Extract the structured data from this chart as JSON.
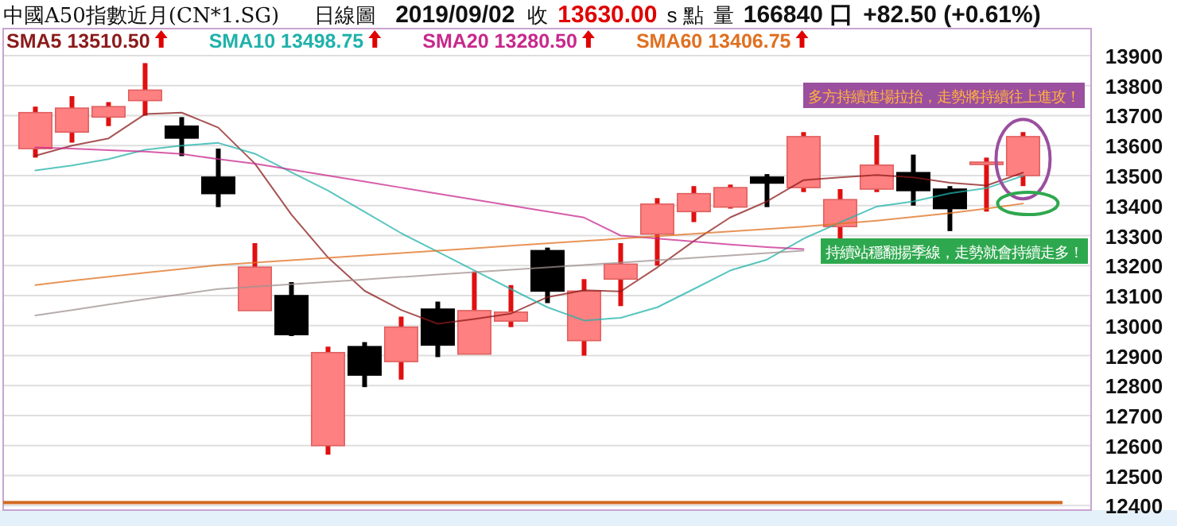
{
  "chart_data": {
    "type": "candlestick",
    "title": "中國A50指數近月(CN*1.SG)",
    "subtitle": "日線圖",
    "annotations": [
      "2019/09/02",
      "收",
      "13630.00",
      "s 點",
      "量",
      "166840 口",
      "+82.50 (+0.61%)",
      "多方持續進場拉抬，走勢將持續往上進攻！",
      "持續站穩翻揚季線，走勢就會持續走多！"
    ],
    "categories": [
      null,
      null,
      null,
      null,
      null,
      null,
      null,
      null,
      null,
      null,
      null,
      null,
      null,
      null,
      null,
      null,
      null,
      null,
      null,
      null,
      null,
      null,
      null,
      null,
      null,
      null,
      null,
      null
    ],
    "ohlc": [
      [
        13590,
        13730,
        13560,
        13710
      ],
      [
        13645,
        13765,
        13610,
        13725
      ],
      [
        13695,
        13745,
        13665,
        13730
      ],
      [
        13750,
        13875,
        13700,
        13785
      ],
      [
        13665,
        13695,
        13565,
        13625
      ],
      [
        13495,
        13590,
        13395,
        13440
      ],
      [
        13050,
        13275,
        13050,
        13195
      ],
      [
        13100,
        13145,
        12965,
        12970
      ],
      [
        12600,
        12930,
        12570,
        12910
      ],
      [
        12930,
        12945,
        12795,
        12835
      ],
      [
        12880,
        13030,
        12820,
        12995
      ],
      [
        13055,
        13080,
        12895,
        12935
      ],
      [
        12905,
        13180,
        12905,
        13050
      ],
      [
        13015,
        13135,
        12995,
        13045
      ],
      [
        13250,
        13260,
        13075,
        13115
      ],
      [
        12950,
        13155,
        12900,
        13115
      ],
      [
        13155,
        13275,
        13065,
        13205
      ],
      [
        13305,
        13425,
        13200,
        13405
      ],
      [
        13380,
        13465,
        13345,
        13440
      ],
      [
        13395,
        13470,
        13390,
        13460
      ],
      [
        13495,
        13505,
        13395,
        13475
      ],
      [
        13460,
        13645,
        13445,
        13630
      ],
      [
        13330,
        13455,
        13290,
        13420
      ],
      [
        13455,
        13635,
        13445,
        13535
      ],
      [
        13510,
        13570,
        13400,
        13450
      ],
      [
        13455,
        13465,
        13315,
        13390
      ],
      [
        13540,
        13560,
        13380,
        13545
      ],
      [
        13500,
        13645,
        13465,
        13630
      ]
    ],
    "series": [
      {
        "type": "line",
        "name": "SMA5 13510.50",
        "color": "#8b1a1a",
        "values": [
          13566,
          13600,
          13624,
          13705,
          13710,
          13660,
          13540,
          13370,
          13227,
          13116,
          13052,
          13006,
          13022,
          13040,
          13095,
          13118,
          13114,
          13194,
          13282,
          13361,
          13414,
          13485,
          13494,
          13502,
          13494,
          13476,
          13467,
          13510
        ]
      },
      {
        "type": "line",
        "name": "SMA10 13498.75",
        "color": "#20b2aa",
        "values": [
          13517,
          13534,
          13555,
          13586,
          13600,
          13609,
          13573,
          13511,
          13450,
          13379,
          13308,
          13246,
          13184,
          13122,
          13061,
          13017,
          13026,
          13061,
          13122,
          13184,
          13220,
          13290,
          13344,
          13397,
          13414,
          13441,
          13458,
          13499
        ]
      },
      {
        "type": "line",
        "name": "SMA20 13280.50",
        "color": "#c8288c",
        "values": [
          13594,
          13590,
          13585,
          13580,
          13572,
          13555,
          13540,
          13520,
          13500,
          13480,
          13460,
          13440,
          13420,
          13400,
          13380,
          13360,
          13300,
          13290,
          13280,
          13270,
          13262,
          13255,
          null,
          null,
          null,
          null,
          null,
          null
        ]
      },
      {
        "type": "line",
        "name": "SMA60 13406.75",
        "color": "#e07020",
        "values": [
          13135,
          13150,
          13163,
          13176,
          13189,
          13202,
          13210,
          13218,
          13226,
          13234,
          13242,
          13250,
          13258,
          13266,
          13274,
          13282,
          13290,
          13298,
          13306,
          13314,
          13322,
          13330,
          13340,
          13350,
          13362,
          13375,
          13390,
          13407
        ]
      },
      {
        "type": "line",
        "color": "#a09090",
        "values": [
          13034,
          13052,
          13070,
          13088,
          13105,
          13122,
          13130,
          13138,
          13146,
          13154,
          13162,
          13170,
          13178,
          13186,
          13194,
          13202,
          13210,
          13218,
          13226,
          13234,
          13242,
          13250,
          null,
          null,
          null,
          null,
          null,
          null
        ]
      }
    ],
    "ylim": [
      12385,
      13990
    ],
    "yticks": [
      12400,
      12500,
      12600,
      12700,
      12800,
      12900,
      13000,
      13100,
      13200,
      13300,
      13400,
      13500,
      13600,
      13700,
      13800,
      13900
    ],
    "ref_lines": [
      {
        "axis": "y",
        "value": 12410,
        "color": "#d2691e"
      }
    ],
    "grid": "y",
    "legend": "top left"
  }
}
